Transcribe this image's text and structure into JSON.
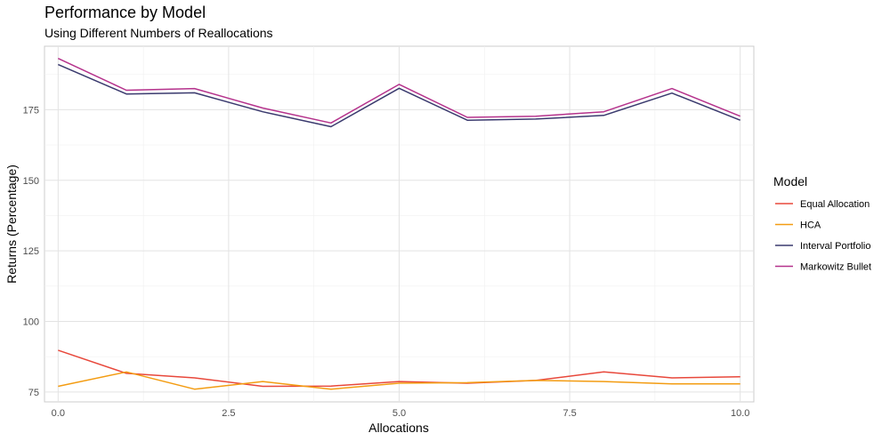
{
  "chart_data": {
    "type": "line",
    "title": "Performance by Model",
    "subtitle": "Using Different Numbers of Reallocations",
    "xlabel": "Allocations",
    "ylabel": "Returns (Percentage)",
    "xlim": [
      -0.2,
      10.2
    ],
    "ylim": [
      71.5,
      197.5
    ],
    "x_ticks": [
      0,
      2.5,
      5,
      7.5,
      10
    ],
    "x_tick_labels": [
      "0.0",
      "2.5",
      "5.0",
      "7.5",
      "10.0"
    ],
    "y_ticks": [
      75,
      100,
      125,
      150,
      175
    ],
    "y_tick_labels": [
      "75",
      "100",
      "125",
      "150",
      "175"
    ],
    "grid": true,
    "legend_title": "Model",
    "legend_position": "right",
    "x": [
      0,
      1,
      2,
      3,
      4,
      5,
      6,
      7,
      8,
      9,
      10
    ],
    "series": [
      {
        "name": "Equal Allocation",
        "color": "#e8483b",
        "values": [
          89.8,
          81.6,
          80.0,
          77.0,
          77.1,
          78.7,
          78.1,
          79.1,
          82.1,
          80.0,
          80.4
        ]
      },
      {
        "name": "HCA",
        "color": "#f39c12",
        "values": [
          77.0,
          82.1,
          76.0,
          78.7,
          76.0,
          78.1,
          78.3,
          79.1,
          78.7,
          77.9,
          77.9
        ]
      },
      {
        "name": "Interval Portfolio",
        "color": "#3a3a6e",
        "values": [
          191.0,
          180.6,
          181.0,
          174.3,
          169.0,
          182.6,
          171.3,
          171.7,
          173.0,
          180.9,
          171.3
        ]
      },
      {
        "name": "Markowitz Bullet",
        "color": "#b5328c",
        "values": [
          193.2,
          181.9,
          182.5,
          175.6,
          170.3,
          184.0,
          172.3,
          172.7,
          174.3,
          182.5,
          172.7
        ]
      }
    ]
  }
}
